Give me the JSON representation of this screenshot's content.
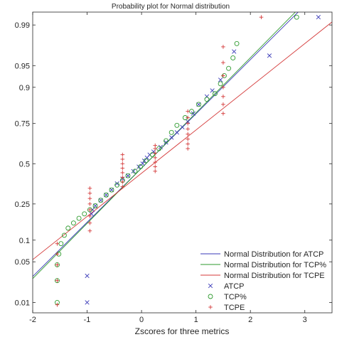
{
  "chart_data": {
    "type": "scatter",
    "title": "Probability plot for Normal distribution",
    "xlabel": "Zscores for three metrics",
    "ylabel": "",
    "xlim": [
      -2,
      3.5
    ],
    "x_ticks": [
      -2,
      -1,
      0,
      1,
      2,
      3
    ],
    "x_tick_labels": [
      "-2",
      "-1",
      "0",
      "1",
      "2",
      "3"
    ],
    "y_scale": "normal-probability",
    "ylim": [
      0.0062,
      0.9945
    ],
    "y_ticks": [
      0.01,
      0.05,
      0.1,
      0.25,
      0.5,
      0.75,
      0.9,
      0.95,
      0.99
    ],
    "y_tick_labels": [
      "0.01",
      "0.05",
      "0.1",
      "0.25",
      "0.5",
      "0.75",
      "0.9",
      "0.95",
      "0.99"
    ],
    "grid": false,
    "legend_position": "bottom-right",
    "colors": {
      "ATCP": "#3a3ab8",
      "TCP%": "#2e9a2e",
      "TCPE": "#d43a3a",
      "axis": "#262626"
    },
    "series": [
      {
        "name": "ATCP",
        "marker": "x",
        "points": [
          [
            -1.0,
            0.01
          ],
          [
            -1.0,
            0.03
          ],
          [
            -0.92,
            0.2
          ],
          [
            -0.9,
            0.22
          ],
          [
            -0.85,
            0.24
          ],
          [
            -0.75,
            0.27
          ],
          [
            -0.65,
            0.3
          ],
          [
            -0.55,
            0.33
          ],
          [
            -0.45,
            0.37
          ],
          [
            -0.35,
            0.4
          ],
          [
            -0.25,
            0.42
          ],
          [
            -0.15,
            0.45
          ],
          [
            -0.05,
            0.48
          ],
          [
            0.02,
            0.5
          ],
          [
            0.05,
            0.52
          ],
          [
            0.1,
            0.54
          ],
          [
            0.15,
            0.56
          ],
          [
            0.22,
            0.58
          ],
          [
            0.35,
            0.61
          ],
          [
            0.45,
            0.64
          ],
          [
            0.55,
            0.67
          ],
          [
            0.65,
            0.7
          ],
          [
            0.75,
            0.73
          ],
          [
            0.85,
            0.76
          ],
          [
            0.95,
            0.8
          ],
          [
            1.05,
            0.84
          ],
          [
            1.2,
            0.87
          ],
          [
            1.3,
            0.89
          ],
          [
            1.45,
            0.92
          ],
          [
            1.7,
            0.97
          ],
          [
            2.35,
            0.965
          ],
          [
            3.25,
            0.993
          ]
        ]
      },
      {
        "name": "TCP%",
        "marker": "o",
        "points": [
          [
            -1.55,
            0.01
          ],
          [
            -1.55,
            0.025
          ],
          [
            -1.55,
            0.045
          ],
          [
            -1.52,
            0.065
          ],
          [
            -1.48,
            0.09
          ],
          [
            -1.42,
            0.115
          ],
          [
            -1.35,
            0.14
          ],
          [
            -1.25,
            0.16
          ],
          [
            -1.15,
            0.18
          ],
          [
            -1.05,
            0.2
          ],
          [
            -0.95,
            0.22
          ],
          [
            -0.85,
            0.24
          ],
          [
            -0.75,
            0.27
          ],
          [
            -0.65,
            0.3
          ],
          [
            -0.55,
            0.33
          ],
          [
            -0.45,
            0.36
          ],
          [
            -0.35,
            0.39
          ],
          [
            -0.25,
            0.42
          ],
          [
            -0.12,
            0.45
          ],
          [
            -0.02,
            0.48
          ],
          [
            0.08,
            0.52
          ],
          [
            0.2,
            0.56
          ],
          [
            0.32,
            0.6
          ],
          [
            0.45,
            0.65
          ],
          [
            0.55,
            0.7
          ],
          [
            0.65,
            0.74
          ],
          [
            0.8,
            0.78
          ],
          [
            0.92,
            0.81
          ],
          [
            1.05,
            0.84
          ],
          [
            1.2,
            0.86
          ],
          [
            1.35,
            0.88
          ],
          [
            1.45,
            0.91
          ],
          [
            1.52,
            0.93
          ],
          [
            1.6,
            0.945
          ],
          [
            1.68,
            0.962
          ],
          [
            1.75,
            0.978
          ],
          [
            2.85,
            0.993
          ]
        ]
      },
      {
        "name": "TCPE",
        "marker": "+",
        "points": [
          [
            -1.55,
            0.009
          ],
          [
            -1.55,
            0.025
          ],
          [
            -1.55,
            0.045
          ],
          [
            -1.55,
            0.065
          ],
          [
            -1.55,
            0.09
          ],
          [
            -0.95,
            0.13
          ],
          [
            -0.95,
            0.16
          ],
          [
            -0.95,
            0.19
          ],
          [
            -0.95,
            0.22
          ],
          [
            -0.95,
            0.25
          ],
          [
            -0.95,
            0.28
          ],
          [
            -0.95,
            0.31
          ],
          [
            -0.95,
            0.34
          ],
          [
            -0.35,
            0.35
          ],
          [
            -0.35,
            0.38
          ],
          [
            -0.35,
            0.41
          ],
          [
            -0.35,
            0.44
          ],
          [
            -0.35,
            0.47
          ],
          [
            -0.35,
            0.5
          ],
          [
            -0.35,
            0.53
          ],
          [
            -0.35,
            0.56
          ],
          [
            0.25,
            0.45
          ],
          [
            0.25,
            0.48
          ],
          [
            0.25,
            0.51
          ],
          [
            0.25,
            0.54
          ],
          [
            0.25,
            0.57
          ],
          [
            0.25,
            0.6
          ],
          [
            0.25,
            0.62
          ],
          [
            0.85,
            0.6
          ],
          [
            0.85,
            0.63
          ],
          [
            0.85,
            0.66
          ],
          [
            0.85,
            0.69
          ],
          [
            0.85,
            0.72
          ],
          [
            0.85,
            0.75
          ],
          [
            0.85,
            0.78
          ],
          [
            0.85,
            0.81
          ],
          [
            1.5,
            0.8
          ],
          [
            1.5,
            0.84
          ],
          [
            1.5,
            0.87
          ],
          [
            1.5,
            0.9
          ],
          [
            1.5,
            0.93
          ],
          [
            1.5,
            0.955
          ],
          [
            1.5,
            0.975
          ],
          [
            2.2,
            0.993
          ]
        ]
      }
    ],
    "fit_lines": [
      {
        "name": "Normal Distribution for ATCP",
        "series": "ATCP",
        "mean": 0.08,
        "sd": 1.1
      },
      {
        "name": "Normal Distribution for TCP%",
        "series": "TCP%",
        "mean": 0.08,
        "sd": 1.08
      },
      {
        "name": "Normal Distribution for TCPE",
        "series": "TCPE",
        "mean": 0.22,
        "sd": 1.38
      }
    ],
    "legend": [
      "Normal Distribution for ATCP",
      "Normal Distribution for TCP%",
      "Normal Distribution for TCPE",
      "ATCP",
      "TCP%",
      "TCPE"
    ]
  }
}
